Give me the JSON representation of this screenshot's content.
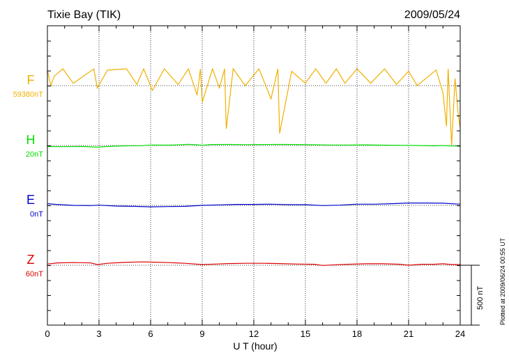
{
  "header": {
    "station": "Tixie Bay (TIK)",
    "date": "2009/05/24"
  },
  "footer": {
    "plotted": "Plotted at 2009/06/24 00:55 UT"
  },
  "chart_data": {
    "type": "line",
    "title": "Tixie Bay (TIK)",
    "date": "2009/05/24",
    "xlabel": "U T (hour)",
    "xlim": [
      0,
      24
    ],
    "xticks": [
      0,
      3,
      6,
      9,
      12,
      15,
      18,
      21,
      24
    ],
    "xtick_labels": [
      "0",
      "3",
      "6",
      "9",
      "12",
      "15",
      "18",
      "21",
      "24"
    ],
    "grid": true,
    "scale_bar": {
      "value": 500,
      "label": "500 nT"
    },
    "channels": [
      {
        "name": "F",
        "baseline_label": "59380nT",
        "color": "#f0b000",
        "baseline": 59380,
        "x": [
          0,
          0.2,
          0.4,
          0.9,
          1.5,
          2.7,
          2.9,
          3.5,
          4.6,
          5.2,
          5.6,
          6.1,
          6.8,
          7.6,
          8.2,
          8.7,
          8.9,
          9.0,
          9.6,
          10.0,
          10.3,
          10.4,
          10.8,
          11.5,
          12.3,
          13.0,
          13.4,
          13.5,
          14.2,
          15.0,
          15.6,
          16.2,
          16.8,
          17.3,
          18.0,
          18.8,
          19.6,
          20.3,
          21.0,
          21.5,
          22.0,
          22.6,
          23.0,
          23.2,
          23.3,
          23.5,
          23.7,
          23.9,
          24.0
        ],
        "y": [
          59510,
          59380,
          59460,
          59520,
          59400,
          59520,
          59360,
          59510,
          59520,
          59390,
          59520,
          59340,
          59520,
          59390,
          59520,
          59300,
          59520,
          59240,
          59520,
          59360,
          59520,
          59020,
          59520,
          59380,
          59520,
          59270,
          59520,
          58980,
          59500,
          59400,
          59520,
          59400,
          59520,
          59400,
          59520,
          59400,
          59520,
          59390,
          59500,
          59380,
          59440,
          59510,
          59320,
          59040,
          59520,
          58880,
          59440,
          59120,
          59030
        ]
      },
      {
        "name": "H",
        "baseline_label": "20nT",
        "color": "#00e000",
        "baseline": 20,
        "x": [
          0,
          1.0,
          2.0,
          2.9,
          3.5,
          4.5,
          5.5,
          6.0,
          7.0,
          7.7,
          8.2,
          8.7,
          9.0,
          9.5,
          10.5,
          11.5,
          12.5,
          13.5,
          14.5,
          15.5,
          16.5,
          17.5,
          18.5,
          19.5,
          20.5,
          21.5,
          22.5,
          23.0,
          23.5,
          24.0
        ],
        "y": [
          11,
          10,
          12,
          6,
          12,
          17,
          18,
          24,
          23,
          26,
          30,
          26,
          22,
          28,
          29,
          27,
          28,
          29,
          28,
          26,
          24,
          24,
          25,
          23,
          22,
          20,
          17,
          20,
          16,
          14
        ]
      },
      {
        "name": "E",
        "baseline_label": "0nT",
        "color": "#0000cc",
        "baseline": 0,
        "x": [
          0,
          0.5,
          1.5,
          2.5,
          3.0,
          4.0,
          5.0,
          6.0,
          7.0,
          8.0,
          9.0,
          10.0,
          11.0,
          12.0,
          13.0,
          14.0,
          15.0,
          16.0,
          17.0,
          18.0,
          19.0,
          20.0,
          21.0,
          22.0,
          23.0,
          24.0
        ],
        "y": [
          14,
          8,
          0,
          -2,
          2,
          -6,
          -8,
          -12,
          -10,
          -8,
          0,
          4,
          8,
          8,
          10,
          6,
          6,
          -2,
          2,
          10,
          10,
          14,
          20,
          20,
          18,
          10
        ]
      },
      {
        "name": "Z",
        "baseline_label": "60nT",
        "color": "#dd0000",
        "baseline": 60,
        "x": [
          0,
          0.6,
          1.5,
          2.5,
          2.9,
          3.5,
          4.5,
          5.5,
          6.0,
          7.0,
          8.0,
          9.0,
          9.8,
          10.5,
          11.5,
          12.5,
          13.5,
          14.5,
          15.5,
          16.0,
          16.8,
          17.5,
          18.5,
          19.5,
          20.5,
          21.0,
          21.8,
          22.5,
          23.0,
          23.5,
          24.0
        ],
        "y": [
          70,
          80,
          82,
          80,
          66,
          76,
          84,
          88,
          86,
          82,
          76,
          66,
          70,
          74,
          76,
          76,
          74,
          70,
          68,
          58,
          64,
          68,
          72,
          72,
          68,
          60,
          68,
          68,
          72,
          66,
          66
        ]
      }
    ]
  }
}
